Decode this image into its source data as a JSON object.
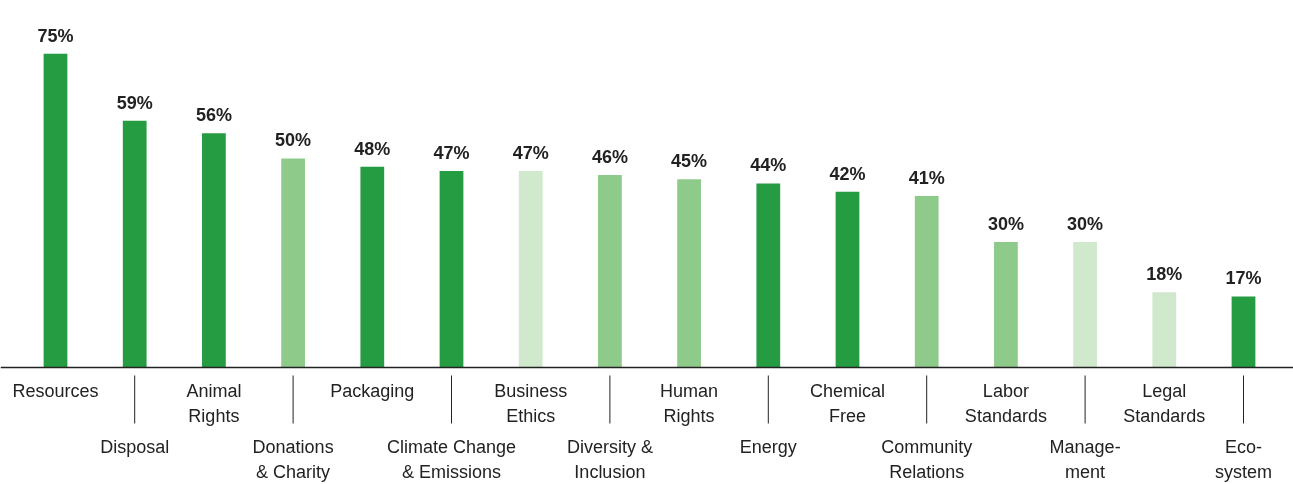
{
  "chart_data": {
    "type": "bar",
    "categories": [
      "Resources",
      "Disposal",
      "Animal\nRights",
      "Donations\n& Charity",
      "Packaging",
      "Climate Change\n& Emissions",
      "Business\nEthics",
      "Diversity &\nInclusion",
      "Human\nRights",
      "Energy",
      "Chemical\nFree",
      "Community\nRelations",
      "Labor\nStandards",
      "Manage-\nment",
      "Legal\nStandards",
      "Eco-\nsystem"
    ],
    "values": [
      75,
      59,
      56,
      50,
      48,
      47,
      47,
      46,
      45,
      44,
      42,
      41,
      30,
      30,
      18,
      17
    ],
    "colors": [
      "#259b42",
      "#259b42",
      "#259b42",
      "#8ecb8a",
      "#259b42",
      "#259b42",
      "#d0e9cc",
      "#8ecb8a",
      "#8ecb8a",
      "#259b42",
      "#259b42",
      "#8ecb8a",
      "#8ecb8a",
      "#d0e9cc",
      "#d0e9cc",
      "#259b42"
    ],
    "value_labels": [
      "75%",
      "59%",
      "56%",
      "50%",
      "48%",
      "47%",
      "47%",
      "46%",
      "45%",
      "44%",
      "42%",
      "41%",
      "30%",
      "30%",
      "18%",
      "17%"
    ],
    "grid": false
  }
}
